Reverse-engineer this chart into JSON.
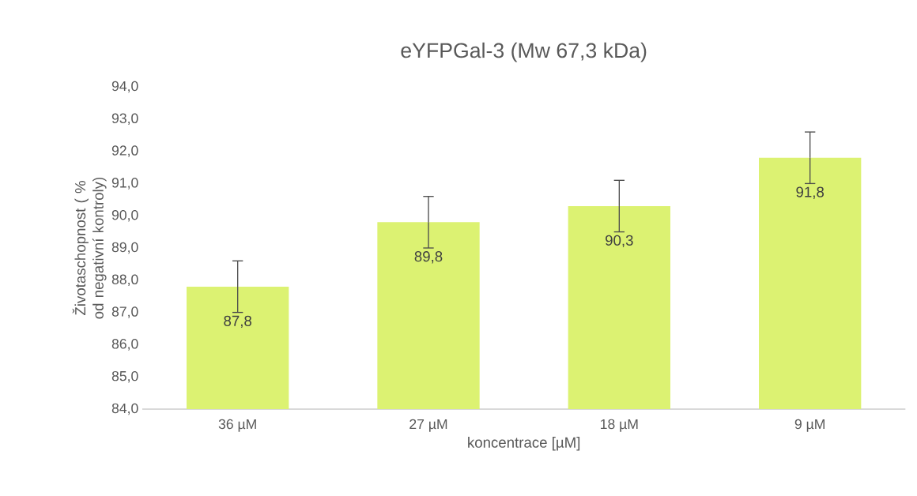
{
  "chart_data": {
    "type": "bar",
    "title": "eYFPGal-3 (Mw 67,3 kDa)",
    "xlabel": "koncentrace [µM]",
    "ylabel": "Životaschopnost ( % od negativní kontroly)",
    "categories": [
      "36 µM",
      "27 µM",
      "18 µM",
      "9 µM"
    ],
    "values": [
      87.8,
      89.8,
      90.3,
      91.8
    ],
    "value_labels": [
      "87,8",
      "89,8",
      "90,3",
      "91,8"
    ],
    "errors": [
      0.8,
      0.8,
      0.8,
      0.8
    ],
    "color": "#dcf272",
    "ylim": [
      84,
      94
    ],
    "yticks": [
      {
        "value": 84,
        "label": "84,0"
      },
      {
        "value": 85,
        "label": "85,0"
      },
      {
        "value": 86,
        "label": "86,0"
      },
      {
        "value": 87,
        "label": "87,0"
      },
      {
        "value": 88,
        "label": "88,0"
      },
      {
        "value": 89,
        "label": "89,0"
      },
      {
        "value": 90,
        "label": "90,0"
      },
      {
        "value": 91,
        "label": "91,0"
      },
      {
        "value": 92,
        "label": "92,0"
      },
      {
        "value": 93,
        "label": "93,0"
      },
      {
        "value": 94,
        "label": "94,0"
      }
    ],
    "grid": false
  }
}
